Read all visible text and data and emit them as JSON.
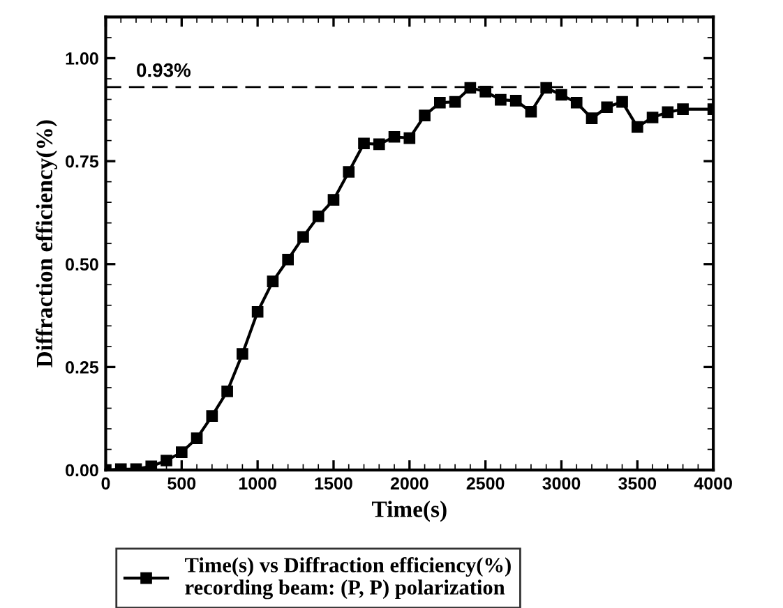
{
  "chart_data": {
    "type": "line",
    "xlabel": "Time(s)",
    "ylabel": "Diffraction efficiency(%)",
    "x": [
      0,
      100,
      200,
      300,
      400,
      500,
      600,
      700,
      800,
      900,
      1000,
      1100,
      1200,
      1300,
      1400,
      1500,
      1600,
      1700,
      1800,
      1900,
      2000,
      2100,
      2200,
      2300,
      2400,
      2500,
      2600,
      2700,
      2800,
      2900,
      3000,
      3100,
      3200,
      3300,
      3400,
      3500,
      3600,
      3700,
      3800,
      4000
    ],
    "series": [
      {
        "name": "Time(s) vs Diffraction efficiency(%)\nrecording beam: (P, P) polarization",
        "color": "#000000",
        "values": [
          0,
          0.002,
          0.002,
          0.009,
          0.023,
          0.043,
          0.077,
          0.131,
          0.191,
          0.282,
          0.384,
          0.458,
          0.511,
          0.566,
          0.616,
          0.656,
          0.724,
          0.793,
          0.791,
          0.809,
          0.806,
          0.861,
          0.892,
          0.894,
          0.928,
          0.919,
          0.899,
          0.897,
          0.87,
          0.928,
          0.911,
          0.892,
          0.854,
          0.881,
          0.894,
          0.833,
          0.856,
          0.869,
          0.876,
          0.876
        ]
      }
    ],
    "xlim": [
      0,
      4000
    ],
    "xticks": [
      0,
      500,
      1000,
      1500,
      2000,
      2500,
      3000,
      3500,
      4000
    ],
    "ylim": [
      0,
      1.1
    ],
    "yticks": [
      {
        "value": 0,
        "label": "0.00"
      },
      {
        "value": 0.25,
        "label": "0.25"
      },
      {
        "value": 0.5,
        "label": "0.50"
      },
      {
        "value": 0.75,
        "label": "0.75"
      },
      {
        "value": 1.0,
        "label": "1.00"
      }
    ],
    "ref_lines": [
      {
        "axis": "y",
        "value": 0.93,
        "label": "0.93%",
        "color": "#000000",
        "line_style": "dashed"
      }
    ],
    "marker": "square",
    "line_style": "solid",
    "grid": false,
    "legend": "bottom"
  }
}
